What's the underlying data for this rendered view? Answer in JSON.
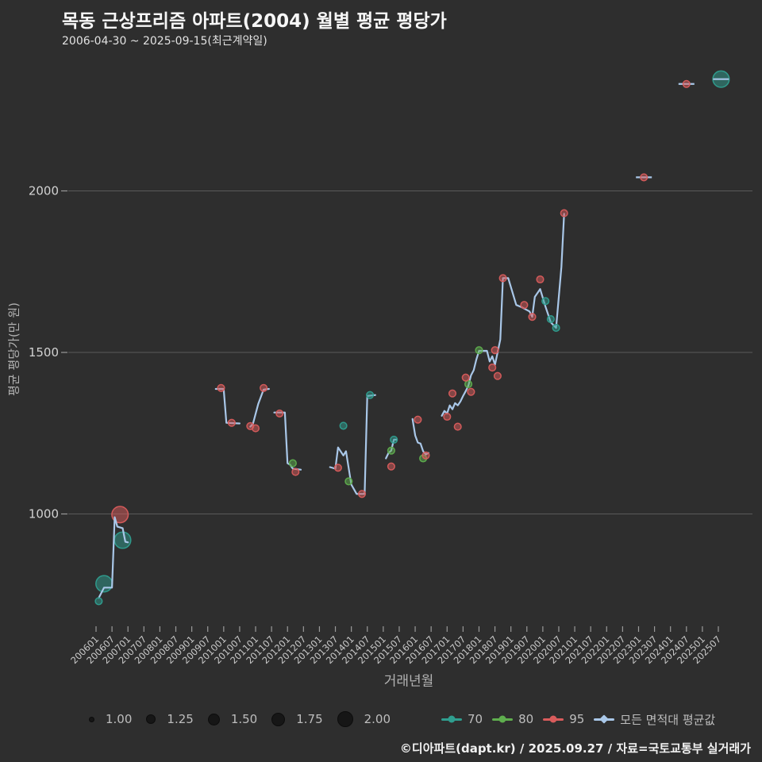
{
  "header": {
    "title": "목동 근상프리즘 아파트(2004) 월별 평균 평당가",
    "subtitle": "2006-04-30 ~ 2025-09-15(최근계약일)"
  },
  "footer": {
    "credit": "©디아파트(dapt.kr) / 2025.09.27 / 자료=국토교통부 실거래가"
  },
  "colors": {
    "background": "#2e2e2e",
    "grid": "#5a5a5a",
    "tick": "#9a9a9a",
    "tick_label": "#c9c9c9",
    "axis_title": "#b3b3b3",
    "avg_line": "#a9c7e8",
    "area70": "#2f9e8f",
    "area80": "#5fae4e",
    "area95": "#d95c5c",
    "size_dot": "#161616",
    "legend_text": "#bdbdbd"
  },
  "legend": {
    "sizes": [
      {
        "label": "1.00",
        "px": 5
      },
      {
        "label": "1.25",
        "px": 10
      },
      {
        "label": "1.50",
        "px": 13
      },
      {
        "label": "1.75",
        "px": 15
      },
      {
        "label": "2.00",
        "px": 18
      }
    ],
    "series": [
      {
        "label": "70",
        "color_key": "area70",
        "marker": "dot"
      },
      {
        "label": "80",
        "color_key": "area80",
        "marker": "dot"
      },
      {
        "label": "95",
        "color_key": "area95",
        "marker": "dot"
      },
      {
        "label": "모든 면적대 평균값",
        "color_key": "avg_line",
        "marker": "diamond"
      }
    ]
  },
  "chart_data": {
    "type": "line",
    "title": "목동 근상프리즘 아파트(2004) 월별 평균 평당가",
    "xlabel": "거래년월",
    "ylabel": "평균 평당가(만 원)",
    "y_ticks": [
      1000,
      1500,
      2000
    ],
    "ylim": [
      650,
      2450
    ],
    "grid": "horizontal-only",
    "legend_position": "bottom",
    "x_ticks": [
      "200601",
      "200607",
      "200701",
      "200707",
      "200801",
      "200807",
      "200901",
      "200907",
      "201001",
      "201007",
      "201101",
      "201107",
      "201201",
      "201207",
      "201301",
      "201307",
      "201401",
      "201407",
      "201501",
      "201507",
      "201601",
      "201607",
      "201701",
      "201707",
      "201801",
      "201807",
      "201901",
      "201907",
      "202001",
      "202007",
      "202101",
      "202107",
      "202201",
      "202207",
      "202301",
      "202307",
      "202401",
      "202407",
      "202501",
      "202507"
    ],
    "avg_line": {
      "name": "모든 면적대 평균값",
      "segments": [
        [
          [
            200602,
            740
          ],
          [
            200604,
            772
          ],
          [
            200607,
            772
          ],
          [
            200608,
            990
          ],
          [
            200609,
            961
          ],
          [
            200611,
            956
          ],
          [
            200612,
            914
          ],
          [
            200701,
            912
          ]
        ],
        [
          [
            200910,
            1387
          ],
          [
            201001,
            1387
          ],
          [
            201002,
            1282
          ],
          [
            201007,
            1280
          ]
        ],
        [
          [
            201011,
            1270
          ],
          [
            201012,
            1279
          ],
          [
            201102,
            1341
          ],
          [
            201104,
            1385
          ],
          [
            201106,
            1387
          ]
        ],
        [
          [
            201108,
            1314
          ],
          [
            201112,
            1314
          ],
          [
            201201,
            1157
          ],
          [
            201202,
            1152
          ],
          [
            201203,
            1140
          ],
          [
            201206,
            1137
          ]
        ],
        [
          [
            201305,
            1145
          ],
          [
            201307,
            1140
          ],
          [
            201308,
            1206
          ],
          [
            201310,
            1181
          ],
          [
            201311,
            1194
          ],
          [
            201401,
            1091
          ],
          [
            201403,
            1062
          ],
          [
            201406,
            1062
          ],
          [
            201407,
            1365
          ],
          [
            201410,
            1368
          ]
        ],
        [
          [
            201502,
            1172
          ],
          [
            201503,
            1189
          ],
          [
            201504,
            1196
          ],
          [
            201505,
            1230
          ],
          [
            201506,
            1230
          ]
        ],
        [
          [
            201512,
            1294
          ],
          [
            201601,
            1243
          ],
          [
            201602,
            1221
          ],
          [
            201603,
            1218
          ],
          [
            201604,
            1194
          ],
          [
            201605,
            1184
          ],
          [
            201606,
            1189
          ]
        ],
        [
          [
            201611,
            1304
          ],
          [
            201612,
            1319
          ],
          [
            201701,
            1311
          ],
          [
            201702,
            1336
          ],
          [
            201703,
            1324
          ],
          [
            201704,
            1343
          ],
          [
            201705,
            1336
          ],
          [
            201706,
            1348
          ],
          [
            201707,
            1365
          ],
          [
            201708,
            1380
          ],
          [
            201709,
            1397
          ],
          [
            201710,
            1429
          ],
          [
            201711,
            1445
          ],
          [
            201712,
            1478
          ],
          [
            201801,
            1505
          ],
          [
            201804,
            1505
          ],
          [
            201805,
            1472
          ],
          [
            201806,
            1488
          ],
          [
            201807,
            1462
          ],
          [
            201808,
            1500
          ],
          [
            201809,
            1540
          ],
          [
            201810,
            1730
          ],
          [
            201812,
            1730
          ],
          [
            201903,
            1647
          ],
          [
            201905,
            1640
          ],
          [
            201908,
            1627
          ],
          [
            201909,
            1610
          ],
          [
            201910,
            1672
          ],
          [
            201912,
            1696
          ],
          [
            202002,
            1642
          ],
          [
            202004,
            1593
          ],
          [
            202006,
            1576
          ],
          [
            202008,
            1765
          ],
          [
            202009,
            1929
          ]
        ],
        [
          [
            202303,
            2042
          ]
        ],
        [
          [
            202407,
            2331
          ]
        ],
        [
          [
            202508,
            2346
          ]
        ]
      ]
    },
    "scatter": [
      {
        "name": "70",
        "color_key": "area70",
        "points": [
          [
            200602,
            730,
            1
          ],
          [
            200604,
            784,
            2
          ],
          [
            200611,
            919,
            2
          ],
          [
            201310,
            1273,
            1
          ],
          [
            201408,
            1368,
            1
          ],
          [
            201505,
            1230,
            1
          ],
          [
            202002,
            1659,
            1
          ],
          [
            202004,
            1603,
            1
          ],
          [
            202006,
            1576,
            1
          ],
          [
            202508,
            2346,
            2
          ]
        ]
      },
      {
        "name": "80",
        "color_key": "area80",
        "points": [
          [
            201203,
            1157,
            1
          ],
          [
            201312,
            1101,
            1
          ],
          [
            201504,
            1196,
            1
          ],
          [
            201604,
            1172,
            1
          ],
          [
            201709,
            1402,
            1
          ],
          [
            201801,
            1507,
            1
          ]
        ]
      },
      {
        "name": "95",
        "color_key": "area95",
        "points": [
          [
            200610,
            998,
            2
          ],
          [
            200912,
            1390,
            1
          ],
          [
            201004,
            1282,
            1
          ],
          [
            201011,
            1272,
            1
          ],
          [
            201101,
            1265,
            1
          ],
          [
            201104,
            1390,
            1
          ],
          [
            201110,
            1311,
            1
          ],
          [
            201204,
            1130,
            1
          ],
          [
            201308,
            1143,
            1
          ],
          [
            201405,
            1062,
            1
          ],
          [
            201504,
            1147,
            1
          ],
          [
            201602,
            1292,
            1
          ],
          [
            201605,
            1181,
            1
          ],
          [
            201701,
            1301,
            1
          ],
          [
            201703,
            1373,
            1
          ],
          [
            201705,
            1270,
            1
          ],
          [
            201708,
            1422,
            1
          ],
          [
            201710,
            1378,
            1
          ],
          [
            201806,
            1453,
            1
          ],
          [
            201807,
            1507,
            1
          ],
          [
            201808,
            1427,
            1
          ],
          [
            201810,
            1730,
            1
          ],
          [
            201906,
            1647,
            1
          ],
          [
            201909,
            1610,
            1
          ],
          [
            201912,
            1726,
            1
          ],
          [
            202009,
            1931,
            1
          ],
          [
            202303,
            2042,
            1
          ],
          [
            202407,
            2331,
            1
          ]
        ]
      }
    ]
  }
}
